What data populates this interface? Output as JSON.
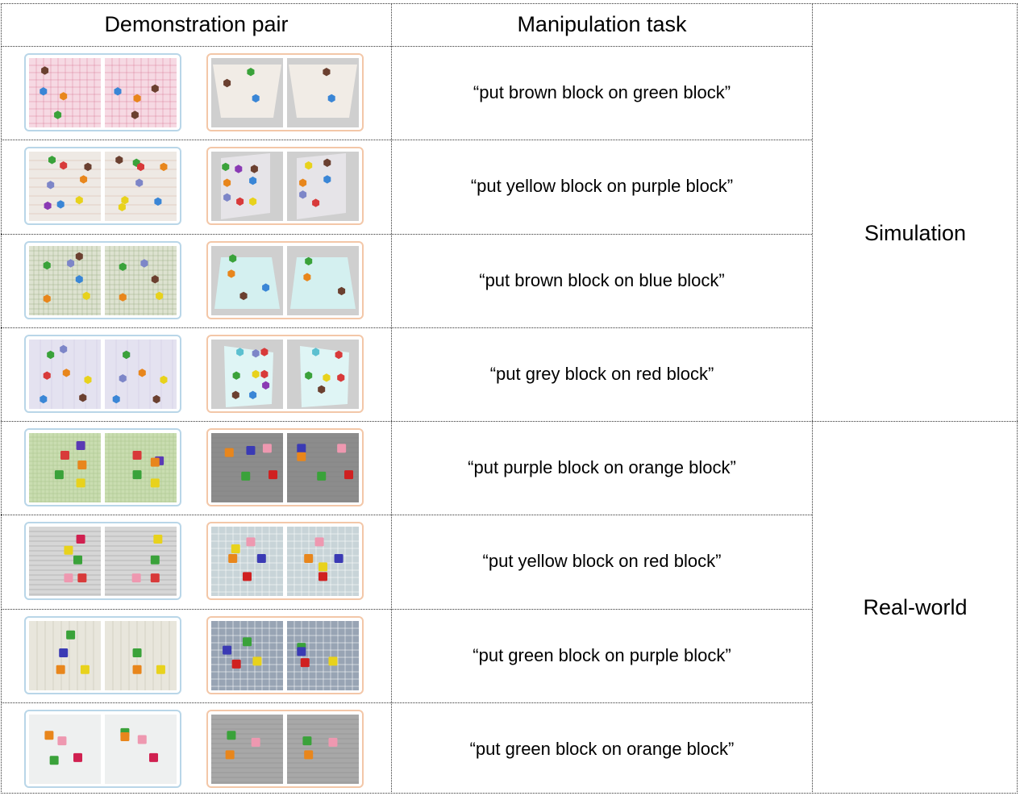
{
  "table": {
    "header_demonstration": "Demonstration pair",
    "header_manipulation": "Manipulation task",
    "group_simulation": "Simulation",
    "group_realworld": "Real-world"
  },
  "rows": [
    {
      "task": "“put brown block on green block”",
      "demo": {
        "bg": "#f6d9e3",
        "pattern": "plaid-pink",
        "left": [
          [
            "#6b4030",
            0.22,
            0.18
          ],
          [
            "#3a86d6",
            0.2,
            0.48
          ],
          [
            "#e8861c",
            0.48,
            0.55
          ],
          [
            "#3aa23a",
            0.4,
            0.82
          ]
        ],
        "right": [
          [
            "#6b4030",
            0.7,
            0.44
          ],
          [
            "#3a86d6",
            0.18,
            0.48
          ],
          [
            "#e8861c",
            0.45,
            0.58
          ],
          [
            "#6b4030",
            0.42,
            0.82
          ]
        ]
      },
      "manip": {
        "floor": "#cfcfcf",
        "plane": "#f1ece6",
        "style": "trapezoid",
        "left": [
          [
            "#3aa23a",
            0.55,
            0.2
          ],
          [
            "#6b4030",
            0.22,
            0.36
          ],
          [
            "#3a86d6",
            0.62,
            0.58
          ]
        ],
        "right": [
          [
            "#6b4030",
            0.55,
            0.2
          ],
          [
            "#3a86d6",
            0.62,
            0.58
          ]
        ]
      }
    },
    {
      "task": "“put yellow block on purple block”",
      "demo": {
        "bg": "#eee9e4",
        "pattern": "wood",
        "left": [
          [
            "#3aa23a",
            0.32,
            0.12
          ],
          [
            "#d83a3a",
            0.48,
            0.2
          ],
          [
            "#6b4030",
            0.82,
            0.22
          ],
          [
            "#e8861c",
            0.76,
            0.4
          ],
          [
            "#7d86c8",
            0.3,
            0.48
          ],
          [
            "#8a3ab4",
            0.26,
            0.78
          ],
          [
            "#e8d21c",
            0.7,
            0.7
          ],
          [
            "#3a86d6",
            0.44,
            0.76
          ]
        ],
        "right": [
          [
            "#6b4030",
            0.2,
            0.12
          ],
          [
            "#3aa23a",
            0.44,
            0.16
          ],
          [
            "#d83a3a",
            0.5,
            0.22
          ],
          [
            "#e8861c",
            0.82,
            0.22
          ],
          [
            "#7d86c8",
            0.48,
            0.45
          ],
          [
            "#e8d21c",
            0.28,
            0.7
          ],
          [
            "#3a86d6",
            0.74,
            0.72
          ],
          [
            "#e8d21c",
            0.24,
            0.8
          ]
        ]
      },
      "manip": {
        "floor": "#cfcfcf",
        "plane": "#e6e4e8",
        "style": "slanted",
        "left": [
          [
            "#3aa23a",
            0.2,
            0.22
          ],
          [
            "#8a3ab4",
            0.38,
            0.25
          ],
          [
            "#6b4030",
            0.6,
            0.25
          ],
          [
            "#e8861c",
            0.22,
            0.45
          ],
          [
            "#3a86d6",
            0.58,
            0.42
          ],
          [
            "#7d86c8",
            0.22,
            0.66
          ],
          [
            "#d83a3a",
            0.4,
            0.72
          ],
          [
            "#e8d21c",
            0.58,
            0.72
          ]
        ],
        "right": [
          [
            "#e8d21c",
            0.3,
            0.2
          ],
          [
            "#6b4030",
            0.56,
            0.16
          ],
          [
            "#3a86d6",
            0.56,
            0.4
          ],
          [
            "#e8861c",
            0.22,
            0.45
          ],
          [
            "#7d86c8",
            0.22,
            0.62
          ],
          [
            "#d83a3a",
            0.4,
            0.74
          ]
        ]
      }
    },
    {
      "task": "“put brown block on blue block”",
      "demo": {
        "bg": "#dde2d0",
        "pattern": "grid-green",
        "left": [
          [
            "#3aa23a",
            0.25,
            0.28
          ],
          [
            "#6b4030",
            0.7,
            0.15
          ],
          [
            "#7d86c8",
            0.58,
            0.25
          ],
          [
            "#3a86d6",
            0.7,
            0.48
          ],
          [
            "#e8861c",
            0.25,
            0.76
          ],
          [
            "#e8d21c",
            0.8,
            0.72
          ]
        ],
        "right": [
          [
            "#3aa23a",
            0.25,
            0.3
          ],
          [
            "#7d86c8",
            0.55,
            0.25
          ],
          [
            "#6b4030",
            0.7,
            0.48
          ],
          [
            "#e8861c",
            0.25,
            0.74
          ],
          [
            "#e8d21c",
            0.76,
            0.72
          ]
        ]
      },
      "manip": {
        "floor": "#cfcfcf",
        "plane": "#d4f0f0",
        "style": "trapezoid2",
        "left": [
          [
            "#3aa23a",
            0.3,
            0.18
          ],
          [
            "#e8861c",
            0.28,
            0.4
          ],
          [
            "#3a86d6",
            0.76,
            0.6
          ],
          [
            "#6b4030",
            0.45,
            0.72
          ]
        ],
        "right": [
          [
            "#3aa23a",
            0.3,
            0.22
          ],
          [
            "#e8861c",
            0.28,
            0.45
          ],
          [
            "#6b4030",
            0.76,
            0.65
          ]
        ]
      }
    },
    {
      "task": "“put grey block on red block”",
      "demo": {
        "bg": "#e4e2f0",
        "pattern": "marble",
        "left": [
          [
            "#3aa23a",
            0.3,
            0.22
          ],
          [
            "#7d86c8",
            0.48,
            0.14
          ],
          [
            "#d83a3a",
            0.25,
            0.52
          ],
          [
            "#e8861c",
            0.52,
            0.48
          ],
          [
            "#e8d21c",
            0.82,
            0.58
          ],
          [
            "#3a86d6",
            0.2,
            0.86
          ],
          [
            "#6b4030",
            0.75,
            0.84
          ]
        ],
        "right": [
          [
            "#7d86c8",
            0.3,
            0.22
          ],
          [
            "#3aa23a",
            0.3,
            0.22
          ],
          [
            "#7d86c8",
            0.25,
            0.56
          ],
          [
            "#e8861c",
            0.52,
            0.48
          ],
          [
            "#e8d21c",
            0.82,
            0.58
          ],
          [
            "#3a86d6",
            0.16,
            0.86
          ],
          [
            "#6b4030",
            0.72,
            0.86
          ]
        ]
      },
      "manip": {
        "floor": "#cfcfcf",
        "plane": "#dff5f5",
        "style": "slanted2",
        "left": [
          [
            "#5cc0d0",
            0.4,
            0.18
          ],
          [
            "#7d86c8",
            0.62,
            0.2
          ],
          [
            "#d83a3a",
            0.74,
            0.18
          ],
          [
            "#3aa23a",
            0.35,
            0.52
          ],
          [
            "#e8d21c",
            0.62,
            0.5
          ],
          [
            "#d83a3a",
            0.74,
            0.5
          ],
          [
            "#8a3ab4",
            0.76,
            0.66
          ],
          [
            "#6b4030",
            0.34,
            0.8
          ],
          [
            "#3a86d6",
            0.58,
            0.8
          ]
        ],
        "right": [
          [
            "#5cc0d0",
            0.4,
            0.18
          ],
          [
            "#d83a3a",
            0.72,
            0.22
          ],
          [
            "#3aa23a",
            0.3,
            0.52
          ],
          [
            "#e8d21c",
            0.55,
            0.55
          ],
          [
            "#d83a3a",
            0.75,
            0.55
          ],
          [
            "#6b4030",
            0.48,
            0.72
          ]
        ]
      }
    },
    {
      "task": "“put purple block on orange block”",
      "demo": {
        "bg": "#c9ddb0",
        "pattern": "grid-lime",
        "left": [
          [
            "#5a3ab4",
            0.72,
            0.18
          ],
          [
            "#d83a3a",
            0.5,
            0.32
          ],
          [
            "#e8861c",
            0.74,
            0.46
          ],
          [
            "#3aa23a",
            0.42,
            0.6
          ],
          [
            "#e8d21c",
            0.72,
            0.72
          ]
        ],
        "right": [
          [
            "#5a3ab4",
            0.76,
            0.4
          ],
          [
            "#d83a3a",
            0.45,
            0.32
          ],
          [
            "#e8861c",
            0.7,
            0.42
          ],
          [
            "#3aa23a",
            0.45,
            0.6
          ],
          [
            "#e8d21c",
            0.7,
            0.72
          ]
        ]
      },
      "manip": {
        "floor": "#8c8c8c",
        "plane": "#9a9a9a",
        "style": "newspaper",
        "left": [
          [
            "#e8861c",
            0.25,
            0.28
          ],
          [
            "#3a3ab4",
            0.55,
            0.25
          ],
          [
            "#ee98b0",
            0.78,
            0.22
          ],
          [
            "#3aa23a",
            0.48,
            0.62
          ],
          [
            "#d02020",
            0.86,
            0.6
          ]
        ],
        "right": [
          [
            "#3a3ab4",
            0.2,
            0.22
          ],
          [
            "#e8861c",
            0.2,
            0.34
          ],
          [
            "#ee98b0",
            0.76,
            0.22
          ],
          [
            "#3aa23a",
            0.48,
            0.62
          ],
          [
            "#d02020",
            0.86,
            0.6
          ]
        ]
      }
    },
    {
      "task": "“put yellow block on red block”",
      "demo": {
        "bg": "#d6d6d6",
        "pattern": "newspaper",
        "left": [
          [
            "#d02050",
            0.72,
            0.18
          ],
          [
            "#e8d21c",
            0.55,
            0.34
          ],
          [
            "#3aa23a",
            0.68,
            0.48
          ],
          [
            "#ee98b0",
            0.55,
            0.74
          ],
          [
            "#d83a3a",
            0.74,
            0.74
          ]
        ],
        "right": [
          [
            "#e8d21c",
            0.74,
            0.18
          ],
          [
            "#3aa23a",
            0.7,
            0.48
          ],
          [
            "#ee98b0",
            0.44,
            0.74
          ],
          [
            "#d83a3a",
            0.7,
            0.74
          ]
        ]
      },
      "manip": {
        "floor": "#c8d4d8",
        "plane": "#c8d4d8",
        "style": "grid-floor",
        "left": [
          [
            "#ee98b0",
            0.55,
            0.22
          ],
          [
            "#e8d21c",
            0.34,
            0.32
          ],
          [
            "#e8861c",
            0.3,
            0.46
          ],
          [
            "#3a3ab4",
            0.7,
            0.46
          ],
          [
            "#d02020",
            0.5,
            0.72
          ]
        ],
        "right": [
          [
            "#ee98b0",
            0.45,
            0.22
          ],
          [
            "#e8861c",
            0.3,
            0.46
          ],
          [
            "#3a3ab4",
            0.72,
            0.46
          ],
          [
            "#e8d21c",
            0.5,
            0.58
          ],
          [
            "#d02020",
            0.5,
            0.72
          ]
        ]
      }
    },
    {
      "task": "“put green block on purple block”",
      "demo": {
        "bg": "#e8e6dc",
        "pattern": "leaves",
        "left": [
          [
            "#3aa23a",
            0.58,
            0.2
          ],
          [
            "#3a3ab4",
            0.48,
            0.46
          ],
          [
            "#e8861c",
            0.44,
            0.7
          ],
          [
            "#e8d21c",
            0.78,
            0.7
          ]
        ],
        "right": [
          [
            "#3aa23a",
            0.45,
            0.46
          ],
          [
            "#e8861c",
            0.45,
            0.7
          ],
          [
            "#e8d21c",
            0.78,
            0.7
          ]
        ]
      },
      "manip": {
        "floor": "#98a4b4",
        "plane": "#98a4b4",
        "style": "grid-floor2",
        "left": [
          [
            "#3a3ab4",
            0.22,
            0.42
          ],
          [
            "#3aa23a",
            0.5,
            0.3
          ],
          [
            "#d02020",
            0.35,
            0.62
          ],
          [
            "#e8d21c",
            0.64,
            0.58
          ]
        ],
        "right": [
          [
            "#3aa23a",
            0.2,
            0.38
          ],
          [
            "#3a3ab4",
            0.2,
            0.44
          ],
          [
            "#d02020",
            0.25,
            0.6
          ],
          [
            "#e8d21c",
            0.64,
            0.58
          ]
        ]
      }
    },
    {
      "task": "“put green block on orange block”",
      "demo": {
        "bg": "#eef0f0",
        "pattern": "white",
        "left": [
          [
            "#e8861c",
            0.28,
            0.3
          ],
          [
            "#ee98b0",
            0.46,
            0.38
          ],
          [
            "#3aa23a",
            0.35,
            0.66
          ],
          [
            "#d02050",
            0.68,
            0.62
          ]
        ],
        "right": [
          [
            "#3aa23a",
            0.28,
            0.26
          ],
          [
            "#e8861c",
            0.28,
            0.32
          ],
          [
            "#ee98b0",
            0.52,
            0.36
          ],
          [
            "#d02050",
            0.68,
            0.62
          ]
        ]
      },
      "manip": {
        "floor": "#a8a8a8",
        "plane": "#a8a8a8",
        "style": "newspaper",
        "left": [
          [
            "#3aa23a",
            0.28,
            0.3
          ],
          [
            "#e8861c",
            0.26,
            0.58
          ],
          [
            "#ee98b0",
            0.62,
            0.4
          ]
        ],
        "right": [
          [
            "#3aa23a",
            0.28,
            0.38
          ],
          [
            "#e8861c",
            0.3,
            0.58
          ],
          [
            "#ee98b0",
            0.64,
            0.4
          ]
        ]
      }
    }
  ]
}
